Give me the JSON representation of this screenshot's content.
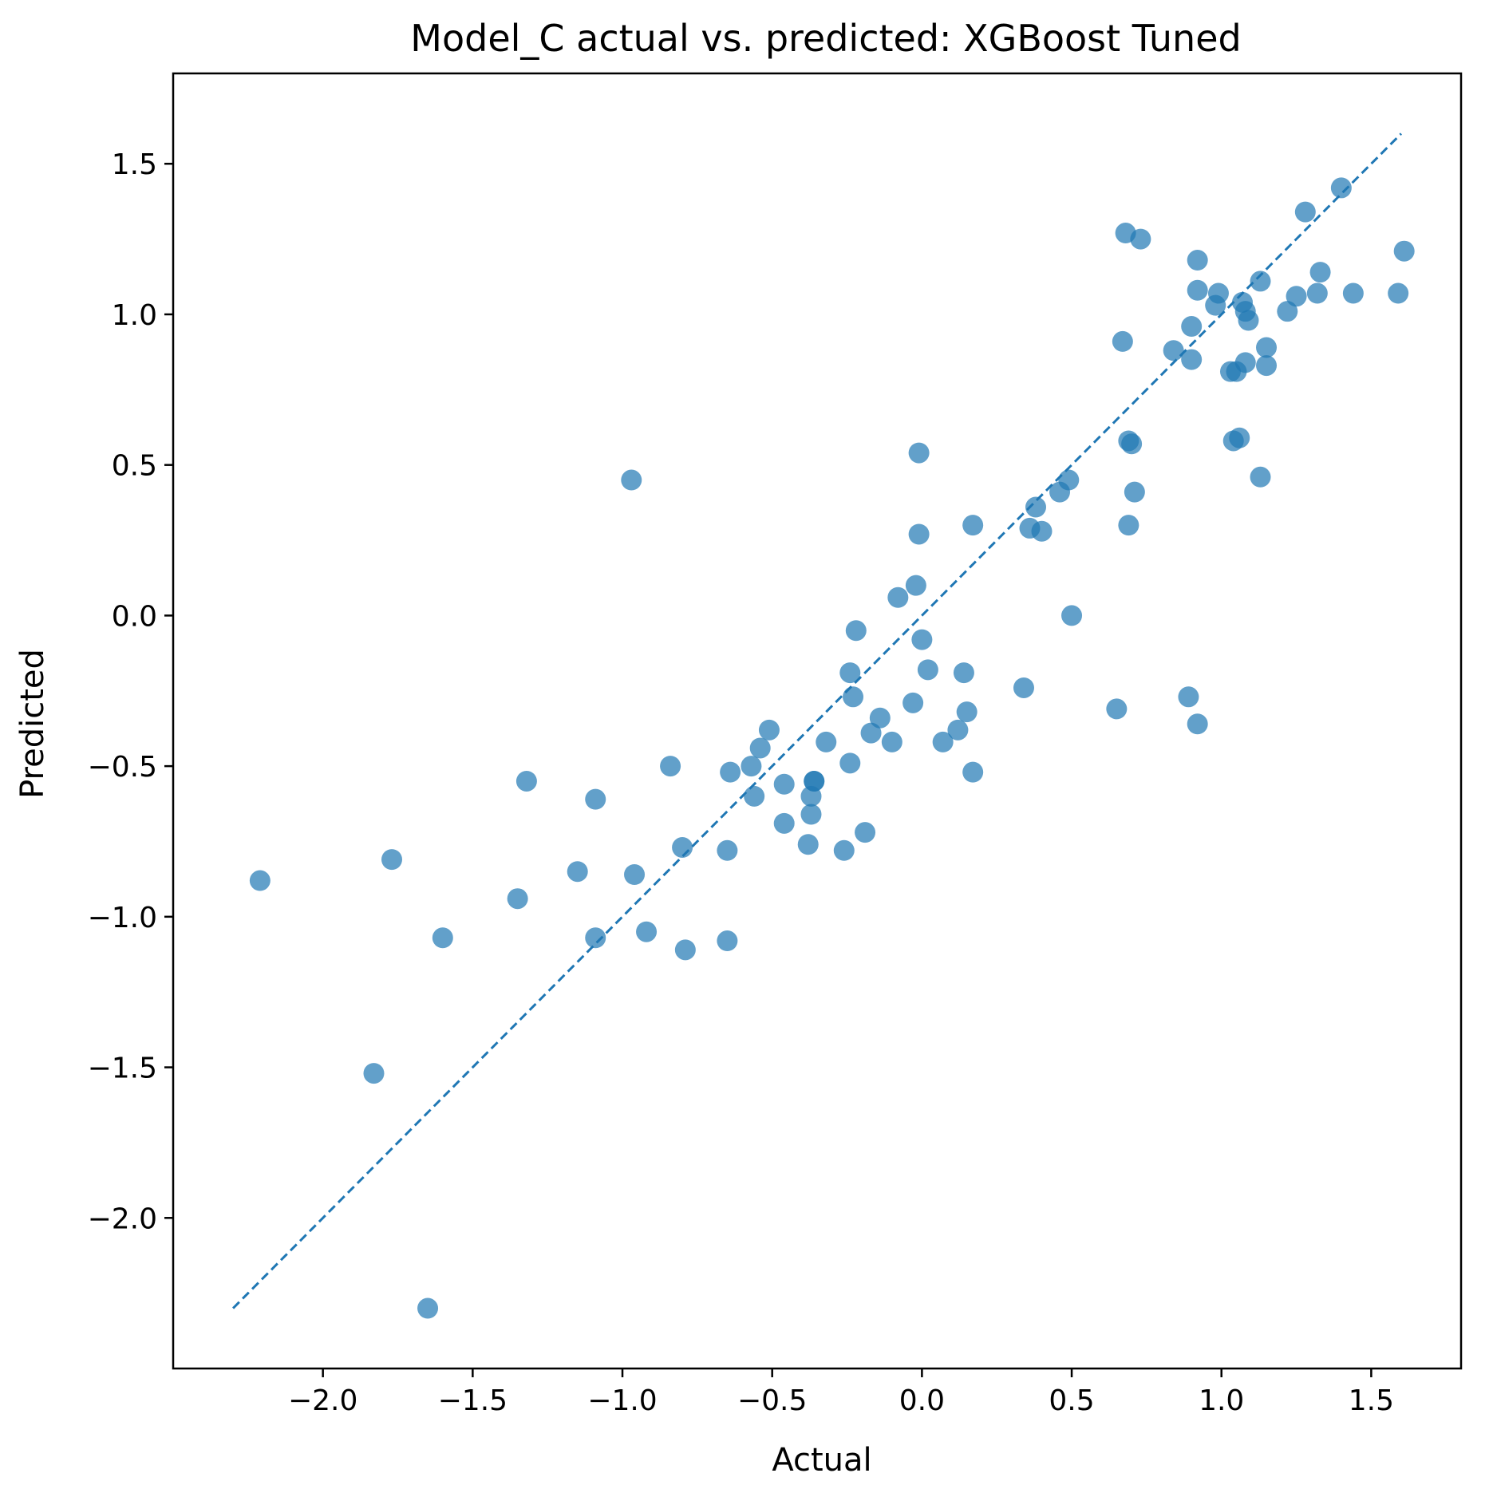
{
  "chart_data": {
    "type": "scatter",
    "title": "Model_C actual vs. predicted: XGBoost Tuned",
    "xlabel": "Actual",
    "ylabel": "Predicted",
    "xlim": [
      -2.5,
      1.8
    ],
    "ylim": [
      -2.5,
      1.8
    ],
    "xticks": [
      -2.0,
      -1.5,
      -1.0,
      -0.5,
      0.0,
      0.5,
      1.0,
      1.5
    ],
    "yticks": [
      -2.0,
      -1.5,
      -1.0,
      -0.5,
      0.0,
      0.5,
      1.0,
      1.5
    ],
    "xtick_labels": [
      "−2.0",
      "−1.5",
      "−1.0",
      "−0.5",
      "0.0",
      "0.5",
      "1.0",
      "1.5"
    ],
    "ytick_labels": [
      "−2.0",
      "−1.5",
      "−1.0",
      "−0.5",
      "0.0",
      "0.5",
      "1.0",
      "1.5"
    ],
    "grid": false,
    "colors": {
      "points": "#1f77b4",
      "reference_line": "#1f77b4"
    },
    "reference_line": {
      "x": [
        -2.3,
        1.6
      ],
      "y": [
        -2.3,
        1.6
      ],
      "style": "dashed"
    },
    "series": [
      {
        "x": [
          -2.21,
          -1.83,
          -1.77,
          -1.65,
          -1.6,
          -1.35,
          -1.32,
          -1.15,
          -1.09,
          -1.09,
          -0.97,
          -0.96,
          -0.92,
          -0.84,
          -0.8,
          -0.79,
          -0.65,
          -0.65,
          -0.64,
          -0.57,
          -0.56,
          -0.54,
          -0.51,
          -0.46,
          -0.46,
          -0.38,
          -0.37,
          -0.37,
          -0.36,
          -0.36,
          -0.32,
          -0.26,
          -0.24,
          -0.24,
          -0.23,
          -0.22,
          -0.19,
          -0.17,
          -0.14,
          -0.1,
          -0.08,
          -0.03,
          -0.02,
          -0.01,
          -0.01,
          0.0,
          0.02,
          0.07,
          0.12,
          0.14,
          0.15,
          0.17,
          0.17,
          0.34,
          0.36,
          0.38,
          0.4,
          0.46,
          0.49,
          0.5,
          0.65,
          0.67,
          0.68,
          0.69,
          0.69,
          0.7,
          0.71,
          0.73,
          0.84,
          0.89,
          0.9,
          0.9,
          0.92,
          0.92,
          0.92,
          0.98,
          0.99,
          1.03,
          1.04,
          1.05,
          1.06,
          1.07,
          1.08,
          1.08,
          1.09,
          1.13,
          1.13,
          1.15,
          1.15,
          1.22,
          1.25,
          1.28,
          1.32,
          1.33,
          1.4,
          1.44,
          1.59,
          1.61
        ],
        "y": [
          -0.88,
          -1.52,
          -0.81,
          -2.3,
          -1.07,
          -0.94,
          -0.55,
          -0.85,
          -1.07,
          -0.61,
          0.45,
          -0.86,
          -1.05,
          -0.5,
          -0.77,
          -1.11,
          -0.78,
          -1.08,
          -0.52,
          -0.5,
          -0.6,
          -0.44,
          -0.38,
          -0.56,
          -0.69,
          -0.76,
          -0.6,
          -0.66,
          -0.55,
          -0.55,
          -0.42,
          -0.78,
          -0.49,
          -0.19,
          -0.27,
          -0.05,
          -0.72,
          -0.39,
          -0.34,
          -0.42,
          0.06,
          -0.29,
          0.1,
          0.27,
          0.54,
          -0.08,
          -0.18,
          -0.42,
          -0.38,
          -0.19,
          -0.32,
          -0.52,
          0.3,
          -0.24,
          0.29,
          0.36,
          0.28,
          0.41,
          0.45,
          0.0,
          -0.31,
          0.91,
          1.27,
          0.58,
          0.3,
          0.57,
          0.41,
          1.25,
          0.88,
          -0.27,
          0.96,
          0.85,
          -0.36,
          1.08,
          1.18,
          1.03,
          1.07,
          0.81,
          0.58,
          0.81,
          0.59,
          1.04,
          0.84,
          1.01,
          0.98,
          1.11,
          0.46,
          0.89,
          0.83,
          1.01,
          1.06,
          1.34,
          1.07,
          1.14,
          1.42,
          1.07,
          1.07,
          1.21
        ]
      }
    ]
  }
}
